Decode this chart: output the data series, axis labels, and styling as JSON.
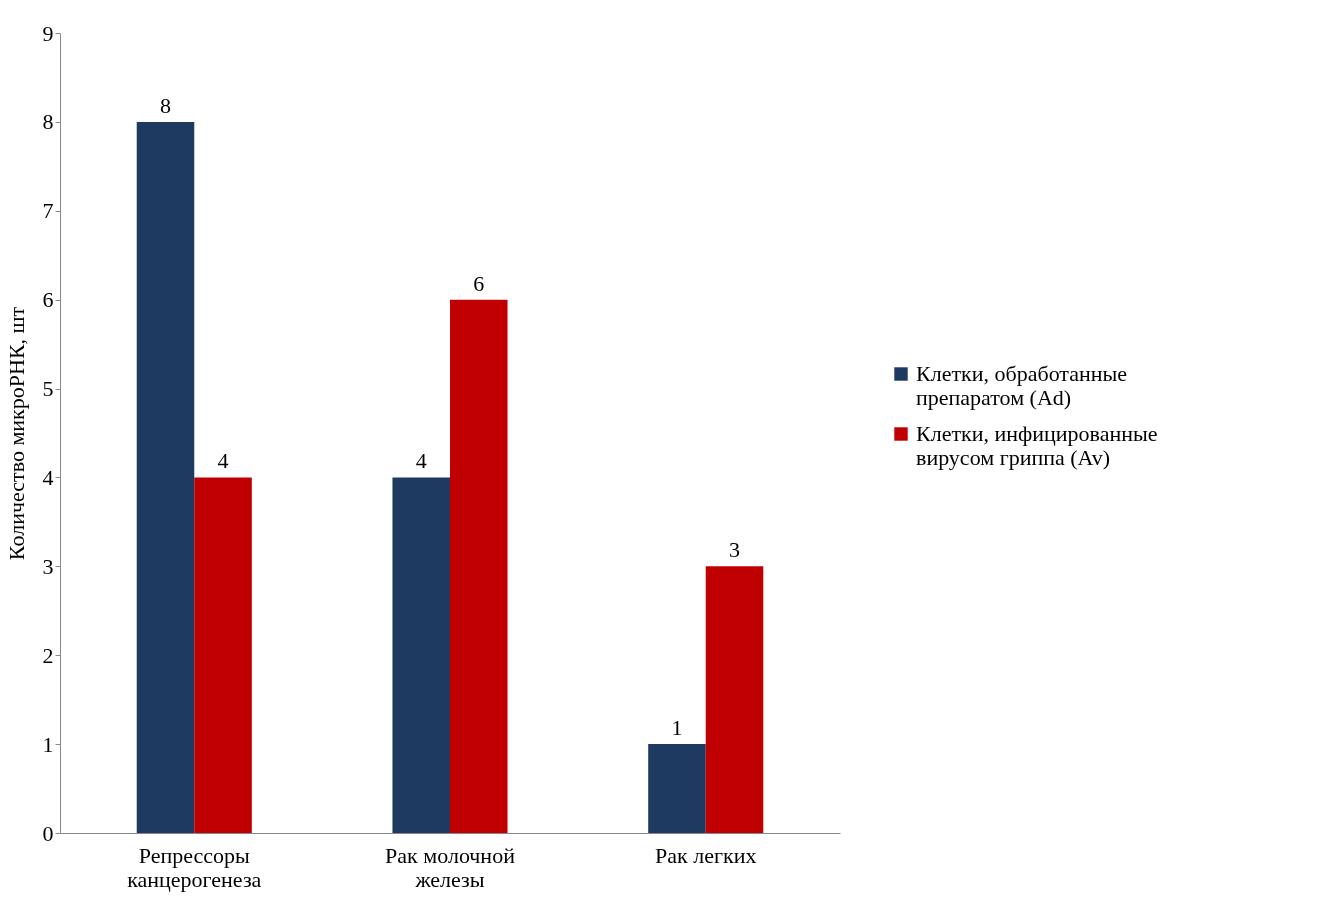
{
  "chart_data": {
    "type": "bar",
    "ylabel": "Количество микроРНК, шт",
    "categories": [
      "Репрессоры\nканцерогенеза",
      "Рак молочной\nжелезы",
      "Рак легких"
    ],
    "series": [
      {
        "name": "Клетки, обработанные\nпрепаратом (Ad)",
        "color": "#1f3a60",
        "values": [
          8,
          4,
          1
        ]
      },
      {
        "name": "Клетки, инфицированные\nвирусом гриппа (Av)",
        "color": "#c00000",
        "values": [
          4,
          6,
          3
        ]
      }
    ],
    "ylim": [
      0,
      9
    ],
    "yticks": [
      0,
      1,
      2,
      3,
      4,
      5,
      6,
      7,
      8,
      9
    ],
    "data_labels": true,
    "grid": false,
    "legend": "right"
  }
}
